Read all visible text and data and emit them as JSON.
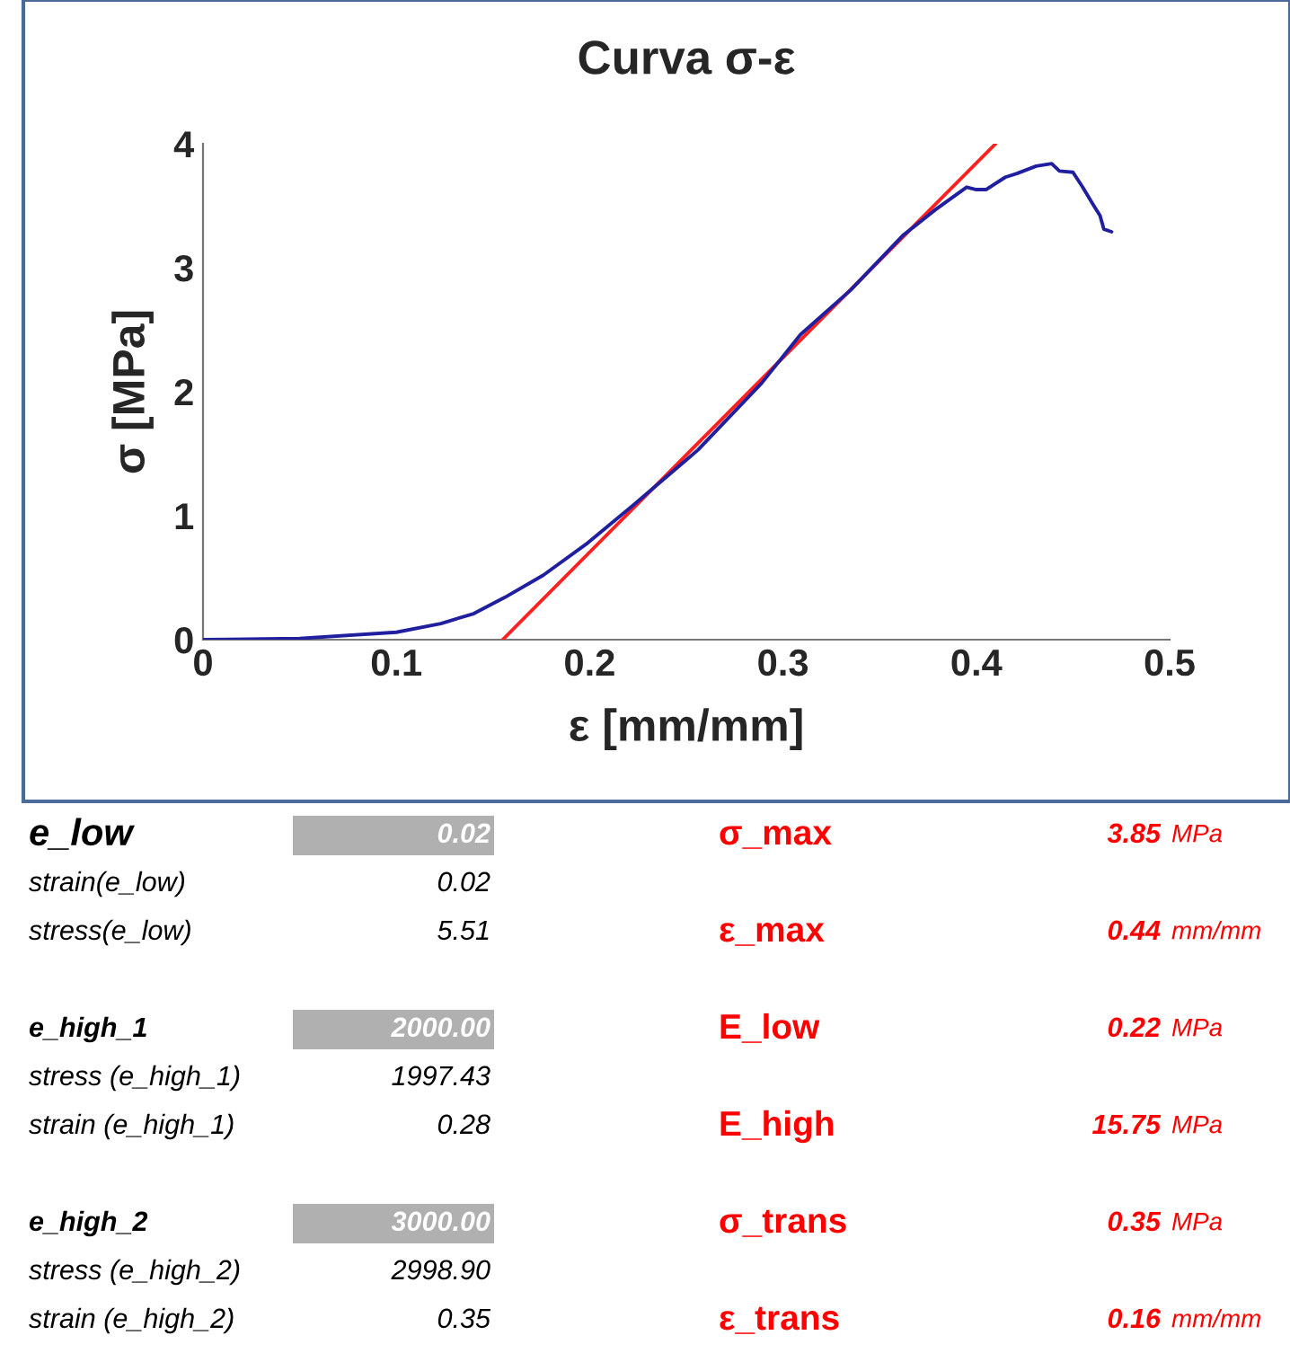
{
  "chart_data": {
    "type": "line",
    "title": "Curva σ-ε",
    "xlabel": "ε [mm/mm]",
    "ylabel": "σ [MPa]",
    "xlim": [
      0,
      0.5
    ],
    "xticks": [
      0,
      0.1,
      0.2,
      0.3,
      0.4,
      0.5
    ],
    "ylim": [
      0,
      4
    ],
    "yticks": [
      0,
      1,
      2,
      3,
      4
    ],
    "grid": false,
    "legend": false,
    "marker": "none",
    "line_style": "solid",
    "series": [
      {
        "color": "#1f1fa0",
        "x": [
          0,
          0.05,
          0.1,
          0.123,
          0.14,
          0.156,
          0.176,
          0.199,
          0.223,
          0.256,
          0.289,
          0.309,
          0.335,
          0.362,
          0.379,
          0.395,
          0.4,
          0.405,
          0.415,
          0.421,
          0.431,
          0.439,
          0.443,
          0.45,
          0.455,
          0.46,
          0.464,
          0.466,
          0.47
        ],
        "values": [
          0,
          0.01,
          0.06,
          0.13,
          0.21,
          0.34,
          0.52,
          0.78,
          1.09,
          1.53,
          2.07,
          2.46,
          2.82,
          3.26,
          3.47,
          3.65,
          3.63,
          3.63,
          3.73,
          3.76,
          3.82,
          3.84,
          3.78,
          3.77,
          3.65,
          3.52,
          3.42,
          3.31,
          3.29
        ]
      },
      {
        "color": "#ff2020",
        "x": [
          0.155,
          0.41
        ],
        "values": [
          0,
          4
        ]
      }
    ],
    "annotations": [
      "e_low",
      "0.02",
      "σ_max",
      "3.85",
      "MPa",
      "strain(e_low)",
      "0.02",
      "stress(e_low)",
      "5.51",
      "ε_max",
      "0.44",
      "mm/mm",
      "e_high_1",
      "2000.00",
      "E_low",
      "0.22",
      "MPa",
      "stress (e_high_1)",
      "1997.43",
      "strain (e_high_1)",
      "0.28",
      "E_high",
      "15.75",
      "MPa",
      "e_high_2",
      "3000.00",
      "σ_trans",
      "0.35",
      "MPa",
      "stress (e_high_2)",
      "2998.90",
      "strain (e_high_2)",
      "0.35",
      "ε_trans",
      "0.16",
      "mm/mm"
    ]
  }
}
